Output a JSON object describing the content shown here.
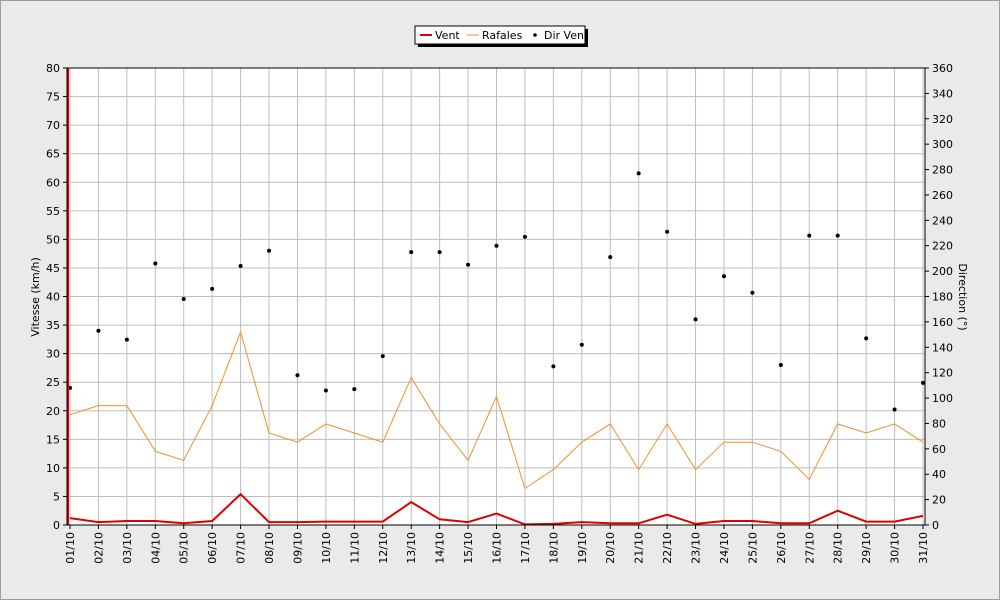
{
  "chart_data": {
    "type": "line",
    "legend": {
      "placement": "top-center",
      "entries": [
        "Vent",
        "Rafales",
        "Dir Vent"
      ]
    },
    "xlabel": "",
    "ylabel": "Vitesse (km/h)",
    "y2label": "Direction (°)",
    "ylim": [
      0,
      80
    ],
    "y2lim": [
      0,
      360
    ],
    "yticks": [
      "0",
      "5",
      "10",
      "15",
      "20",
      "25",
      "30",
      "35",
      "40",
      "45",
      "50",
      "55",
      "60",
      "65",
      "70",
      "75",
      "80"
    ],
    "y2ticks": [
      "0",
      "20",
      "40",
      "60",
      "80",
      "100",
      "120",
      "140",
      "160",
      "180",
      "200",
      "220",
      "240",
      "260",
      "280",
      "300",
      "320",
      "340",
      "360"
    ],
    "grid": true,
    "categories": [
      "01/10",
      "02/10",
      "03/10",
      "04/10",
      "05/10",
      "06/10",
      "07/10",
      "08/10",
      "09/10",
      "10/10",
      "11/10",
      "12/10",
      "13/10",
      "14/10",
      "15/10",
      "16/10",
      "17/10",
      "18/10",
      "19/10",
      "20/10",
      "21/10",
      "22/10",
      "23/10",
      "24/10",
      "25/10",
      "26/10",
      "27/10",
      "28/10",
      "29/10",
      "30/10",
      "31/10"
    ],
    "series": [
      {
        "name": "Vent",
        "axis": "left",
        "color": "#dd0000",
        "values": [
          1.2,
          0.5,
          0.7,
          0.7,
          0.3,
          0.7,
          5.4,
          0.5,
          0.5,
          0.6,
          0.6,
          0.6,
          4.0,
          1.0,
          0.5,
          2.0,
          0.1,
          0.2,
          0.5,
          0.3,
          0.3,
          1.8,
          0.2,
          0.7,
          0.7,
          0.3,
          0.3,
          2.5,
          0.6,
          0.6,
          1.6
        ]
      },
      {
        "name": "Rafales",
        "axis": "left",
        "color": "#f0902a",
        "values": [
          19.3,
          20.9,
          20.9,
          12.9,
          11.3,
          20.9,
          33.8,
          16.1,
          14.5,
          17.7,
          16.1,
          14.5,
          25.8,
          17.7,
          11.3,
          22.5,
          6.4,
          9.7,
          14.5,
          17.7,
          9.7,
          17.7,
          9.7,
          14.5,
          14.5,
          12.9,
          8.0,
          17.7,
          16.1,
          17.7,
          14.5
        ]
      },
      {
        "name": "Dir Vent",
        "axis": "right",
        "color": "#000000",
        "values": [
          108,
          153,
          146,
          206,
          178,
          186,
          204,
          216,
          118,
          106,
          107,
          133,
          215,
          215,
          205,
          220,
          227,
          125,
          142,
          211,
          277,
          231,
          162,
          196,
          183,
          126,
          228,
          228,
          147,
          91,
          112
        ]
      }
    ]
  }
}
